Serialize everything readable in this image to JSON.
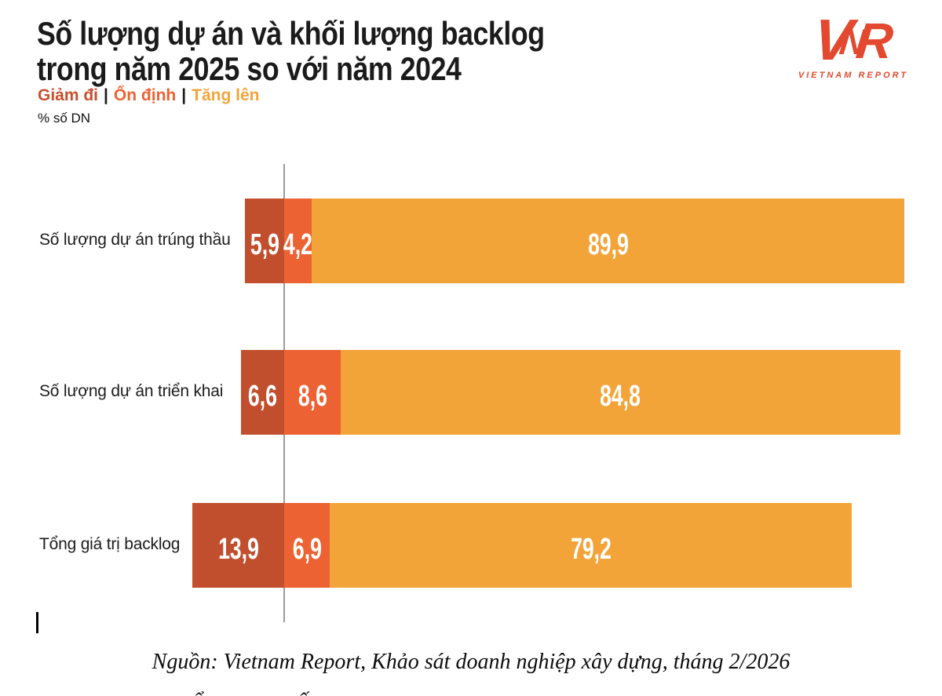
{
  "header": {
    "title_line1": "Số lượng dự án và khối lượng backlog",
    "title_line2": "trong năm 2025 so với năm 2024",
    "unit_label": "% số DN"
  },
  "legend": {
    "separator": "|",
    "items": [
      {
        "label": "Giảm đi",
        "color": "#c8502e"
      },
      {
        "label": "Ổn định",
        "color": "#ec6233"
      },
      {
        "label": "Tăng lên",
        "color": "#f3a43a"
      }
    ]
  },
  "logo": {
    "letters": [
      "V",
      "N",
      "R"
    ],
    "caption": "VIETNAM REPORT",
    "color": "#e2492f"
  },
  "chart_data": {
    "type": "bar",
    "orientation": "horizontal_stacked_diverging",
    "title": "Số lượng dự án và khối lượng backlog trong năm 2025 so với năm 2024",
    "unit": "% số DN",
    "legend_position": "top-left",
    "axis": {
      "baseline_value": 0,
      "note": "Giảm đi extends left of baseline; Ổn định and Tăng lên extend right"
    },
    "categories": [
      "Số lượng dự án trúng thầu",
      "Số lượng dự án triển khai",
      "Tổng giá trị backlog"
    ],
    "series": [
      {
        "name": "Giảm đi",
        "color": "#c14f2e",
        "values": [
          5.9,
          6.6,
          13.9
        ],
        "labels": [
          "5,9",
          "6,6",
          "13,9"
        ]
      },
      {
        "name": "Ổn định",
        "color": "#ec6233",
        "values": [
          4.2,
          8.6,
          6.9
        ],
        "labels": [
          "4,2",
          "8,6",
          "6,9"
        ]
      },
      {
        "name": "Tăng lên",
        "color": "#f3a439",
        "values": [
          89.9,
          84.8,
          79.2
        ],
        "labels": [
          "89,9",
          "84,8",
          "79,2"
        ]
      }
    ]
  },
  "footer": {
    "source": "Nguồn: Vietnam Report, Khảo sát doanh nghiệp xây dựng, tháng 2/2026",
    "cutoff_glyphs": [
      "ẩ",
      "ố"
    ]
  }
}
